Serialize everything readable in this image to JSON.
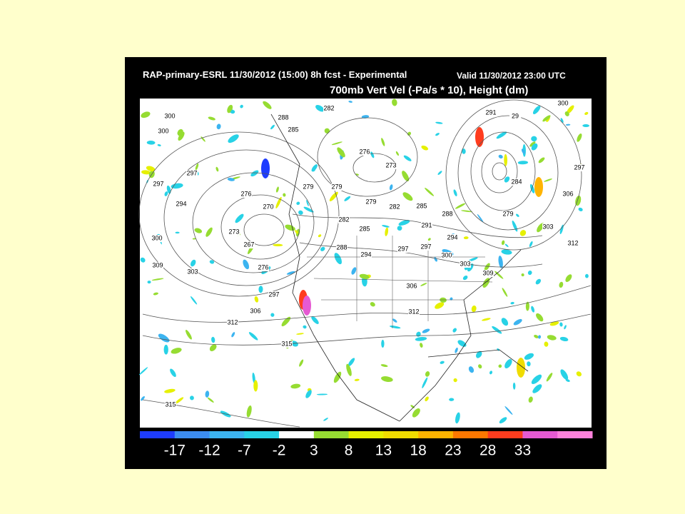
{
  "header": {
    "title": "RAP-primary-ESRL 11/30/2012 (15:00) 8h fcst - Experimental",
    "valid": "Valid 11/30/2012 23:00 UTC",
    "field": "700mb Vert Vel (-Pa/s * 10), Height (dm)"
  },
  "map": {
    "contour_labels": [
      "300",
      "300",
      "288",
      "282",
      "285",
      "279",
      "276",
      "273",
      "279",
      "279",
      "282",
      "285",
      "288",
      "291",
      "294",
      "297",
      "300",
      "303",
      "309",
      "306",
      "312",
      "291",
      "29",
      "300",
      "297",
      "306",
      "303",
      "312",
      "279",
      "284",
      "276",
      "270",
      "273",
      "267",
      "276",
      "297",
      "294",
      "297",
      "300",
      "309",
      "303",
      "297",
      "306",
      "312",
      "315",
      "315",
      "288",
      "294",
      "297",
      "282",
      "285"
    ]
  },
  "colorbar": {
    "colors": [
      "#1e3cff",
      "#3c8cf0",
      "#3cb4f0",
      "#28d2e6",
      "#ffffff",
      "#96dc32",
      "#e6f000",
      "#f0dc00",
      "#ffb400",
      "#ff7800",
      "#ff3c1e",
      "#e65ad2",
      "#ff82dc"
    ],
    "labels": [
      "-17",
      "-12",
      "-7",
      "-2",
      "3",
      "8",
      "13",
      "18",
      "23",
      "28",
      "33"
    ]
  }
}
